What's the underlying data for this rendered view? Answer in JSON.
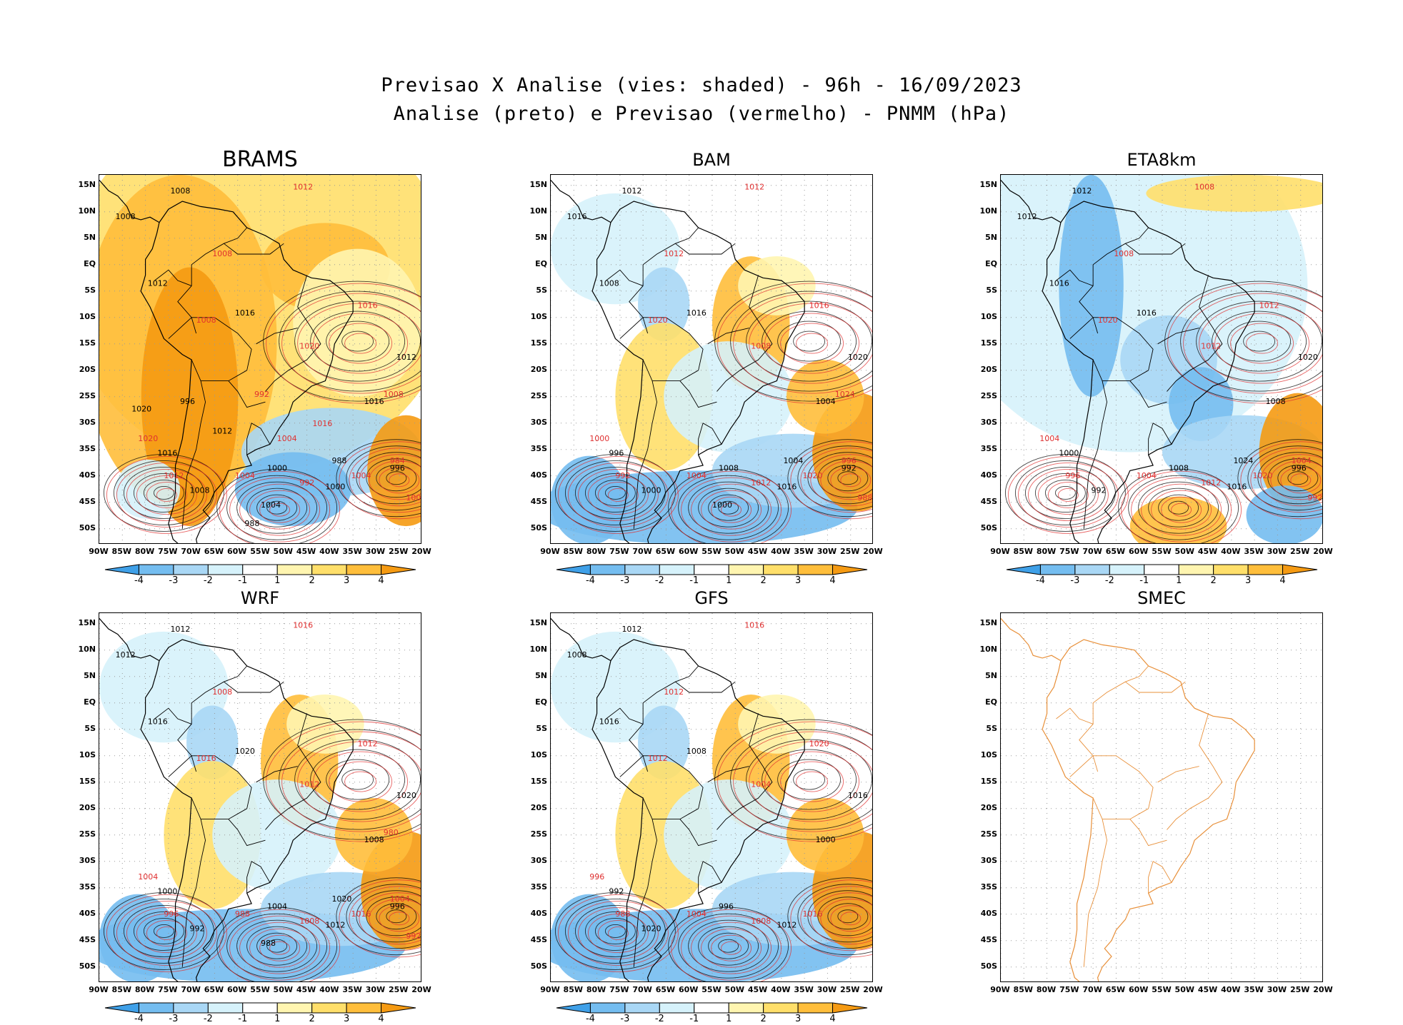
{
  "titles": {
    "line1": "Previsao X Analise (vies: shaded) - 96h - 16/09/2023",
    "line2": "Analise (preto) e Previsao (vermelho) - PNMM (hPa)"
  },
  "colors": {
    "analysis_contour": "#000000",
    "forecast_contour": "#e03030",
    "bias_neg4": "#3fa0e8",
    "bias_neg3": "#74bdf0",
    "bias_neg2": "#a9d7f5",
    "bias_neg1": "#d6f2fb",
    "bias_zero": "#ffffff",
    "bias_pos1": "#fff5b0",
    "bias_pos2": "#ffdf6a",
    "bias_pos3": "#ffbe3b",
    "bias_pos4": "#f59a12",
    "smec_coast": "#e8903a"
  },
  "axes": {
    "y_labels": [
      "15N",
      "10N",
      "5N",
      "EQ",
      "5S",
      "10S",
      "15S",
      "20S",
      "25S",
      "30S",
      "35S",
      "40S",
      "45S",
      "50S"
    ],
    "x_labels": [
      "90W",
      "85W",
      "80W",
      "75W",
      "70W",
      "65W",
      "60W",
      "55W",
      "50W",
      "45W",
      "40W",
      "35W",
      "30W",
      "25W",
      "20W"
    ]
  },
  "colorbar": {
    "labels": [
      "-4",
      "-3",
      "-2",
      "-1",
      "1",
      "2",
      "3",
      "4"
    ]
  },
  "panels": [
    {
      "name": "BRAMS",
      "bias": "warm"
    },
    {
      "name": "BAM",
      "bias": "mixed"
    },
    {
      "name": "ETA8km",
      "bias": "cold"
    },
    {
      "name": "WRF",
      "bias": "mixed"
    },
    {
      "name": "GFS",
      "bias": "mixed"
    },
    {
      "name": "SMEC",
      "bias": "none"
    }
  ],
  "contour_labels": {
    "BRAMS": [
      "1008",
      "1012",
      "1008",
      "1008",
      "1012",
      "1016",
      "1012",
      "1008",
      "1016",
      "1020",
      "1016",
      "1020",
      "1016",
      "1012",
      "1008",
      "1004",
      "1000",
      "992",
      "1000",
      "1004",
      "988",
      "984",
      "996",
      "1000",
      "1004",
      "1008",
      "1012",
      "1016",
      "1020",
      "1004",
      "996",
      "992",
      "988"
    ],
    "BAM": [
      "1012",
      "1012",
      "1016",
      "1012",
      "1008",
      "1016",
      "1020",
      "1020",
      "1016",
      "1008",
      "1004",
      "1000",
      "996",
      "992",
      "1000",
      "1004",
      "1008",
      "1012",
      "1016",
      "1020",
      "1004",
      "996",
      "992",
      "988",
      "1000",
      "1024"
    ],
    "ETA8km": [
      "1012",
      "1008",
      "1012",
      "1008",
      "1016",
      "1012",
      "1020",
      "1020",
      "1016",
      "1012",
      "1008",
      "1004",
      "1000",
      "996",
      "992",
      "1004",
      "1008",
      "1012",
      "1016",
      "1020",
      "1024",
      "1004",
      "996",
      "992"
    ],
    "WRF": [
      "1012",
      "1016",
      "1012",
      "1008",
      "1016",
      "1012",
      "1020",
      "1016",
      "1020",
      "1012",
      "1008",
      "1004",
      "1000",
      "996",
      "992",
      "988",
      "1004",
      "1008",
      "1012",
      "1016",
      "1020",
      "1004",
      "996",
      "992",
      "988",
      "980"
    ],
    "GFS": [
      "1012",
      "1016",
      "1008",
      "1012",
      "1016",
      "1020",
      "1016",
      "1012",
      "1008",
      "1004",
      "1000",
      "996",
      "992",
      "988",
      "1020",
      "1004",
      "996",
      "1008",
      "1012",
      "1016"
    ]
  }
}
